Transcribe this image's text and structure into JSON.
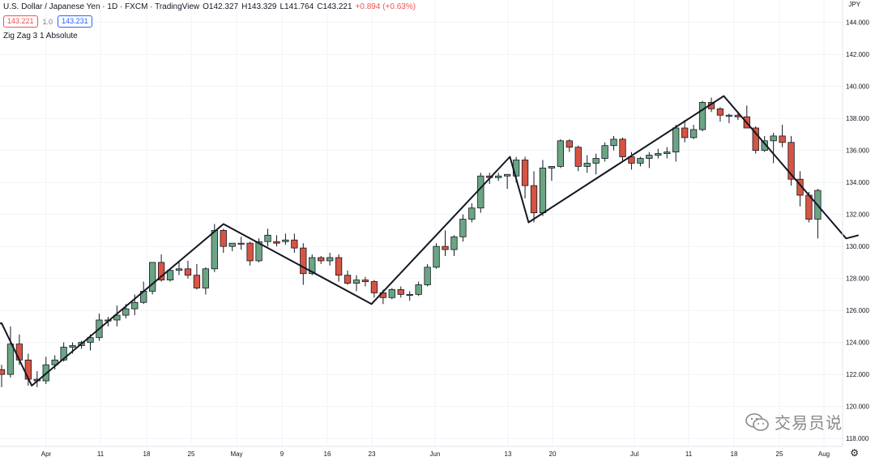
{
  "header": {
    "symbol": "U.S. Dollar / Japanese Yen · 1D · FXCM · TradingView",
    "open": "O142.327",
    "high": "H143.329",
    "low": "L141.764",
    "close": "C143.221",
    "change": "+0.894 (+0.63%)",
    "sell_price": "143.221",
    "spread": "1.0",
    "buy_price": "143.231",
    "indicator": "Zig Zag 3 1 Absolute",
    "currency": "JPY"
  },
  "watermark": "交易员说",
  "colors": {
    "up": "#6ba583",
    "down": "#d75442",
    "zigzag": "#131722",
    "grid": "#f0f3fa"
  },
  "chart_data": {
    "type": "candlestick",
    "y_axis_ticks": [
      "144.000",
      "142.000",
      "140.000",
      "138.000",
      "136.000",
      "134.000",
      "132.000",
      "130.000",
      "128.000",
      "126.000",
      "124.000",
      "122.000",
      "120.000",
      "118.000"
    ],
    "ylim": [
      117.5,
      145.4
    ],
    "x_tick_labels": [
      "Apr",
      "11",
      "18",
      "25",
      "May",
      "9",
      "16",
      "23",
      "Jun",
      "13",
      "20",
      "Jul",
      "11",
      "18",
      "25",
      "Aug"
    ],
    "candles": [
      {
        "o": 122.3,
        "h": 122.6,
        "l": 121.2,
        "c": 122.0
      },
      {
        "o": 122.0,
        "h": 125.0,
        "l": 121.8,
        "c": 123.9
      },
      {
        "o": 123.9,
        "h": 124.5,
        "l": 122.6,
        "c": 122.9
      },
      {
        "o": 122.9,
        "h": 123.3,
        "l": 121.3,
        "c": 121.7
      },
      {
        "o": 121.7,
        "h": 122.2,
        "l": 121.2,
        "c": 121.6
      },
      {
        "o": 121.6,
        "h": 123.1,
        "l": 121.4,
        "c": 122.6
      },
      {
        "o": 122.6,
        "h": 123.2,
        "l": 122.3,
        "c": 122.9
      },
      {
        "o": 122.9,
        "h": 124.0,
        "l": 122.8,
        "c": 123.7
      },
      {
        "o": 123.7,
        "h": 124.0,
        "l": 123.3,
        "c": 123.8
      },
      {
        "o": 123.8,
        "h": 124.1,
        "l": 123.6,
        "c": 124.0
      },
      {
        "o": 124.0,
        "h": 124.5,
        "l": 123.5,
        "c": 124.3
      },
      {
        "o": 124.3,
        "h": 125.8,
        "l": 124.1,
        "c": 125.4
      },
      {
        "o": 125.4,
        "h": 125.6,
        "l": 125.0,
        "c": 125.4
      },
      {
        "o": 125.4,
        "h": 126.3,
        "l": 125.0,
        "c": 125.7
      },
      {
        "o": 125.7,
        "h": 126.4,
        "l": 125.5,
        "c": 126.1
      },
      {
        "o": 126.1,
        "h": 127.0,
        "l": 125.7,
        "c": 126.5
      },
      {
        "o": 126.5,
        "h": 127.8,
        "l": 126.4,
        "c": 127.2
      },
      {
        "o": 127.2,
        "h": 129.0,
        "l": 127.0,
        "c": 129.0
      },
      {
        "o": 129.0,
        "h": 129.5,
        "l": 127.8,
        "c": 127.9
      },
      {
        "o": 127.9,
        "h": 128.6,
        "l": 127.8,
        "c": 128.5
      },
      {
        "o": 128.5,
        "h": 129.0,
        "l": 128.2,
        "c": 128.6
      },
      {
        "o": 128.6,
        "h": 129.1,
        "l": 128.0,
        "c": 128.2
      },
      {
        "o": 128.2,
        "h": 128.9,
        "l": 127.3,
        "c": 127.4
      },
      {
        "o": 127.4,
        "h": 128.7,
        "l": 127.0,
        "c": 128.6
      },
      {
        "o": 128.6,
        "h": 131.4,
        "l": 128.4,
        "c": 131.0
      },
      {
        "o": 131.0,
        "h": 131.1,
        "l": 129.6,
        "c": 130.0
      },
      {
        "o": 130.0,
        "h": 130.2,
        "l": 129.7,
        "c": 130.2
      },
      {
        "o": 130.2,
        "h": 130.6,
        "l": 129.8,
        "c": 130.2
      },
      {
        "o": 130.2,
        "h": 130.3,
        "l": 128.8,
        "c": 129.1
      },
      {
        "o": 129.1,
        "h": 130.5,
        "l": 129.0,
        "c": 130.3
      },
      {
        "o": 130.3,
        "h": 131.1,
        "l": 130.0,
        "c": 130.7
      },
      {
        "o": 130.3,
        "h": 130.7,
        "l": 130.0,
        "c": 130.2
      },
      {
        "o": 130.3,
        "h": 130.8,
        "l": 130.1,
        "c": 130.4
      },
      {
        "o": 130.4,
        "h": 130.8,
        "l": 129.6,
        "c": 129.9
      },
      {
        "o": 129.9,
        "h": 130.2,
        "l": 127.6,
        "c": 128.3
      },
      {
        "o": 128.3,
        "h": 129.5,
        "l": 128.2,
        "c": 129.3
      },
      {
        "o": 129.3,
        "h": 129.4,
        "l": 128.9,
        "c": 129.1
      },
      {
        "o": 129.1,
        "h": 129.6,
        "l": 128.8,
        "c": 129.3
      },
      {
        "o": 129.3,
        "h": 129.5,
        "l": 127.8,
        "c": 128.2
      },
      {
        "o": 128.2,
        "h": 128.5,
        "l": 127.6,
        "c": 127.7
      },
      {
        "o": 127.7,
        "h": 128.2,
        "l": 127.2,
        "c": 127.9
      },
      {
        "o": 127.9,
        "h": 128.1,
        "l": 127.5,
        "c": 127.8
      },
      {
        "o": 127.8,
        "h": 127.9,
        "l": 126.8,
        "c": 127.1
      },
      {
        "o": 127.1,
        "h": 127.3,
        "l": 126.4,
        "c": 126.8
      },
      {
        "o": 126.8,
        "h": 127.4,
        "l": 126.7,
        "c": 127.3
      },
      {
        "o": 127.3,
        "h": 127.5,
        "l": 126.8,
        "c": 127.0
      },
      {
        "o": 127.0,
        "h": 127.2,
        "l": 126.6,
        "c": 127.0
      },
      {
        "o": 127.0,
        "h": 127.8,
        "l": 126.9,
        "c": 127.6
      },
      {
        "o": 127.6,
        "h": 128.9,
        "l": 127.5,
        "c": 128.7
      },
      {
        "o": 128.7,
        "h": 130.2,
        "l": 128.6,
        "c": 130.0
      },
      {
        "o": 130.0,
        "h": 131.0,
        "l": 129.4,
        "c": 129.8
      },
      {
        "o": 129.8,
        "h": 130.7,
        "l": 129.4,
        "c": 130.6
      },
      {
        "o": 130.6,
        "h": 132.0,
        "l": 130.3,
        "c": 131.7
      },
      {
        "o": 131.7,
        "h": 132.7,
        "l": 131.5,
        "c": 132.4
      },
      {
        "o": 132.4,
        "h": 134.6,
        "l": 132.1,
        "c": 134.4
      },
      {
        "o": 134.4,
        "h": 134.6,
        "l": 133.9,
        "c": 134.3
      },
      {
        "o": 134.3,
        "h": 134.6,
        "l": 134.1,
        "c": 134.4
      },
      {
        "o": 134.4,
        "h": 134.5,
        "l": 133.6,
        "c": 134.5
      },
      {
        "o": 134.4,
        "h": 135.6,
        "l": 134.0,
        "c": 135.4
      },
      {
        "o": 135.4,
        "h": 135.6,
        "l": 133.0,
        "c": 133.8
      },
      {
        "o": 133.8,
        "h": 134.7,
        "l": 131.5,
        "c": 132.1
      },
      {
        "o": 132.1,
        "h": 135.4,
        "l": 131.9,
        "c": 134.9
      },
      {
        "o": 134.9,
        "h": 135.0,
        "l": 134.1,
        "c": 135.0
      },
      {
        "o": 135.0,
        "h": 136.7,
        "l": 134.9,
        "c": 136.6
      },
      {
        "o": 136.6,
        "h": 136.7,
        "l": 135.9,
        "c": 136.2
      },
      {
        "o": 136.2,
        "h": 136.3,
        "l": 134.7,
        "c": 135.0
      },
      {
        "o": 135.0,
        "h": 135.7,
        "l": 134.6,
        "c": 135.2
      },
      {
        "o": 135.2,
        "h": 135.8,
        "l": 134.5,
        "c": 135.5
      },
      {
        "o": 135.5,
        "h": 136.5,
        "l": 135.3,
        "c": 136.3
      },
      {
        "o": 136.3,
        "h": 136.9,
        "l": 136.0,
        "c": 136.7
      },
      {
        "o": 136.7,
        "h": 136.8,
        "l": 135.3,
        "c": 135.6
      },
      {
        "o": 135.6,
        "h": 135.9,
        "l": 134.8,
        "c": 135.2
      },
      {
        "o": 135.2,
        "h": 135.6,
        "l": 135.0,
        "c": 135.5
      },
      {
        "o": 135.5,
        "h": 135.9,
        "l": 134.9,
        "c": 135.7
      },
      {
        "o": 135.7,
        "h": 136.1,
        "l": 135.5,
        "c": 135.8
      },
      {
        "o": 135.8,
        "h": 136.2,
        "l": 135.5,
        "c": 135.9
      },
      {
        "o": 135.9,
        "h": 137.6,
        "l": 135.3,
        "c": 137.4
      },
      {
        "o": 137.4,
        "h": 137.9,
        "l": 136.5,
        "c": 136.8
      },
      {
        "o": 136.8,
        "h": 137.6,
        "l": 136.7,
        "c": 137.3
      },
      {
        "o": 137.3,
        "h": 139.1,
        "l": 137.2,
        "c": 139.0
      },
      {
        "o": 139.0,
        "h": 139.3,
        "l": 138.4,
        "c": 138.6
      },
      {
        "o": 138.6,
        "h": 138.7,
        "l": 137.8,
        "c": 138.2
      },
      {
        "o": 138.2,
        "h": 138.3,
        "l": 137.7,
        "c": 138.2
      },
      {
        "o": 138.2,
        "h": 138.4,
        "l": 137.9,
        "c": 138.1
      },
      {
        "o": 138.1,
        "h": 138.8,
        "l": 137.6,
        "c": 137.4
      },
      {
        "o": 137.4,
        "h": 137.5,
        "l": 135.8,
        "c": 136.0
      },
      {
        "o": 136.0,
        "h": 136.9,
        "l": 135.9,
        "c": 136.6
      },
      {
        "o": 136.6,
        "h": 137.1,
        "l": 135.2,
        "c": 136.9
      },
      {
        "o": 136.9,
        "h": 137.6,
        "l": 136.2,
        "c": 136.5
      },
      {
        "o": 136.5,
        "h": 136.9,
        "l": 133.8,
        "c": 134.2
      },
      {
        "o": 134.2,
        "h": 134.7,
        "l": 132.5,
        "c": 133.2
      },
      {
        "o": 133.2,
        "h": 133.4,
        "l": 131.5,
        "c": 131.7
      },
      {
        "o": 131.7,
        "h": 133.6,
        "l": 130.5,
        "c": 133.5
      }
    ],
    "zigzag": [
      {
        "i": -1.2,
        "p": 125.1
      },
      {
        "i": 0.0,
        "p": 125.2
      },
      {
        "i": 3.4,
        "p": 121.3
      },
      {
        "i": 25.0,
        "p": 131.4
      },
      {
        "i": 41.7,
        "p": 126.4
      },
      {
        "i": 57.3,
        "p": 135.6
      },
      {
        "i": 59.4,
        "p": 131.5
      },
      {
        "i": 81.4,
        "p": 139.4
      },
      {
        "i": 95.2,
        "p": 130.5
      },
      {
        "i": 96.6,
        "p": 130.7
      }
    ]
  }
}
